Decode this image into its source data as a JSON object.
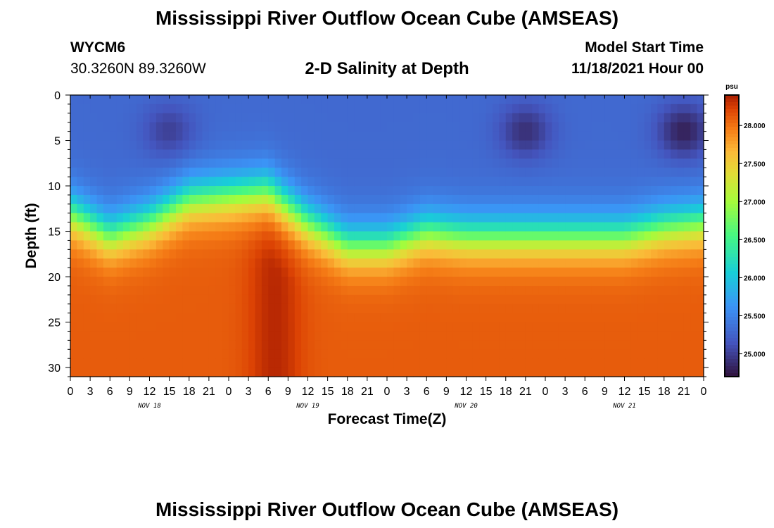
{
  "header": {
    "title": "Mississippi River Outflow Ocean Cube (AMSEAS)",
    "station_id": "WYCM6",
    "coords": "30.3260N  89.3260W",
    "subtitle": "2-D Salinity at Depth",
    "model_start_label": "Model Start Time",
    "model_start_value": "11/18/2021 Hour 00"
  },
  "footer": {
    "repeated_title": "Mississippi River Outflow Ocean Cube (AMSEAS)"
  },
  "chart_data": {
    "type": "heatmap",
    "title": "2-D Salinity at Depth",
    "xlabel": "Forecast Time(Z)",
    "ylabel": "Depth (ft)",
    "x_range_hours": [
      0,
      96
    ],
    "ylim": [
      0,
      31
    ],
    "y_inverted": true,
    "x_ticks": [
      "0",
      "3",
      "6",
      "9",
      "12",
      "15",
      "18",
      "21",
      "0",
      "3",
      "6",
      "9",
      "12",
      "15",
      "18",
      "21",
      "0",
      "3",
      "6",
      "9",
      "12",
      "15",
      "18",
      "21",
      "0",
      "3",
      "6",
      "9",
      "12",
      "15",
      "18",
      "21",
      "0"
    ],
    "y_ticks": [
      "0",
      "5",
      "10",
      "15",
      "20",
      "25",
      "30"
    ],
    "day_labels": [
      "NOV 18",
      "NOV 19",
      "NOV 20",
      "NOV 21"
    ],
    "colorbar": {
      "unit": "psu",
      "min": 24.7,
      "max": 28.4,
      "tick_labels": [
        "25.000",
        "25.500",
        "26.000",
        "26.500",
        "27.000",
        "27.500",
        "28.000"
      ],
      "tick_values": [
        25.0,
        25.5,
        26.0,
        26.5,
        27.0,
        27.5,
        28.0
      ],
      "colormap": "turbo"
    },
    "halocline_depth_ft": {
      "hours": [
        0,
        6,
        12,
        18,
        24,
        30,
        36,
        42,
        48,
        54,
        60,
        66,
        72,
        78,
        84,
        90,
        96
      ],
      "values": [
        13,
        15.5,
        14,
        11.5,
        11,
        10.5,
        14,
        16.5,
        16.5,
        15,
        15.5,
        15.5,
        15.5,
        15.5,
        15.5,
        14.5,
        14
      ]
    },
    "surface_salinity_psu": 25.3,
    "bottom_salinity_psu": 28.1,
    "fresh_cores": [
      {
        "hour": 15,
        "depth_ft": 4,
        "salinity_psu": 25.0
      },
      {
        "hour": 69,
        "depth_ft": 4,
        "salinity_psu": 24.9
      },
      {
        "hour": 93,
        "depth_ft": 4,
        "salinity_psu": 24.8
      }
    ]
  }
}
